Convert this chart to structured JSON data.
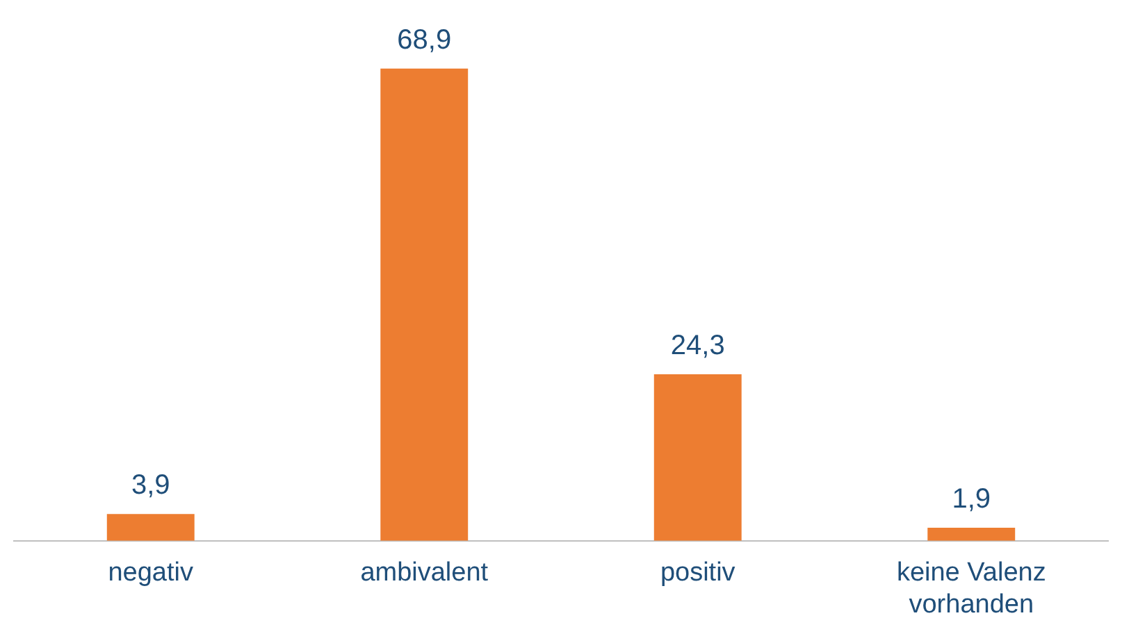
{
  "chart_data": {
    "type": "bar",
    "categories": [
      "negativ",
      "ambivalent",
      "positiv",
      "keine Valenz vorhanden"
    ],
    "values": [
      3.9,
      68.9,
      24.3,
      1.9
    ],
    "value_labels": [
      "3,9",
      "68,9",
      "24,3",
      "1,9"
    ],
    "color": "#ed7d31",
    "grid": false,
    "legend": false
  }
}
